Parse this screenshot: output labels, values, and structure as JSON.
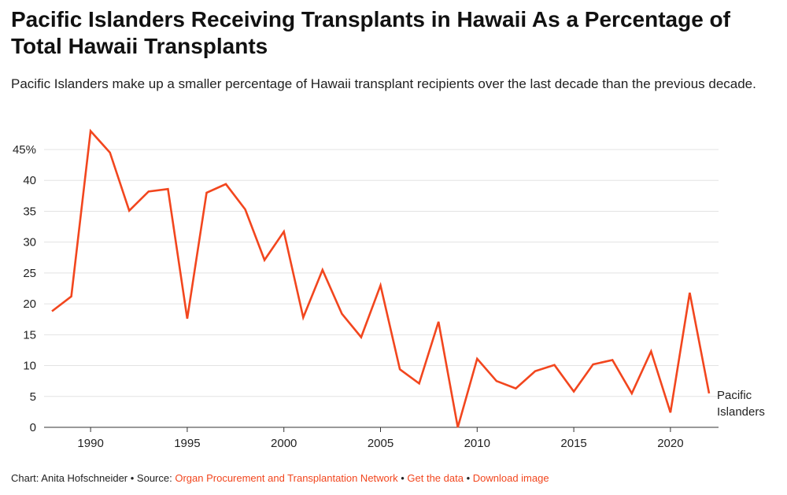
{
  "header": {
    "title": "Pacific Islanders Receiving Transplants in Hawaii As a Percentage of Total Hawaii Transplants",
    "subtitle": "Pacific Islanders make up a smaller percentage of Hawaii transplant recipients over the last decade than the previous decade."
  },
  "footer": {
    "credit": "Chart: Anita Hofschneider",
    "source_prefix": "Source: ",
    "source_link": "Organ Procurement and Transplantation Network",
    "get_data": "Get the data",
    "download": "Download image",
    "separator": " • ",
    "link_color": "#f2461e"
  },
  "chart_data": {
    "type": "line",
    "x": [
      1988,
      1989,
      1990,
      1991,
      1992,
      1993,
      1994,
      1995,
      1996,
      1997,
      1998,
      1999,
      2000,
      2001,
      2002,
      2003,
      2004,
      2005,
      2006,
      2007,
      2008,
      2009,
      2010,
      2011,
      2012,
      2013,
      2014,
      2015,
      2016,
      2017,
      2018,
      2019,
      2020,
      2021,
      2022
    ],
    "series": [
      {
        "name": "Pacific Islanders",
        "color": "#f2461e",
        "values": [
          18.8,
          21.2,
          48.0,
          44.5,
          35.1,
          38.2,
          38.6,
          17.6,
          38.0,
          39.4,
          35.3,
          27.1,
          31.7,
          17.8,
          25.5,
          18.4,
          14.6,
          23.0,
          9.4,
          7.1,
          17.1,
          0.0,
          11.1,
          7.5,
          6.3,
          9.1,
          10.1,
          5.8,
          10.2,
          10.9,
          5.5,
          12.3,
          2.4,
          21.8,
          5.5
        ]
      }
    ],
    "xticks": [
      1990,
      1995,
      2000,
      2005,
      2010,
      2015,
      2020
    ],
    "yticks": [
      0,
      5,
      10,
      15,
      20,
      25,
      30,
      35,
      40,
      45
    ],
    "ytick_labels": [
      "0",
      "5",
      "10",
      "15",
      "20",
      "25",
      "30",
      "35",
      "40",
      "45%"
    ],
    "series_label_lines": [
      "Pacific",
      "Islanders"
    ],
    "xlim": [
      1988,
      2022
    ],
    "ylim": [
      0,
      45
    ],
    "grid": true,
    "title": "",
    "xlabel": "",
    "ylabel": ""
  }
}
